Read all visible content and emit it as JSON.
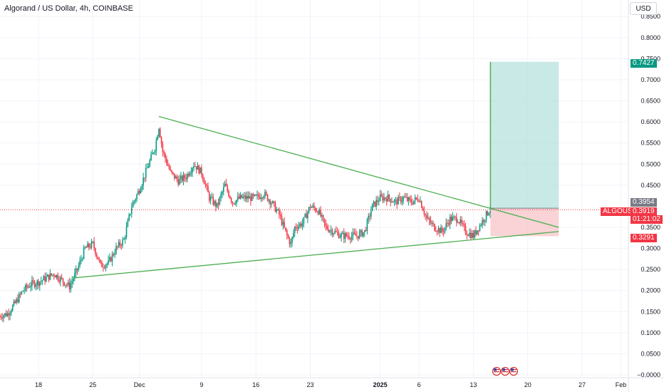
{
  "header": {
    "title": "Algorand / US Dollar, 4h, COINBASE",
    "currency": "USD"
  },
  "price_tags": {
    "target": "0.7427",
    "entry": "0.3954",
    "price": "0.3919",
    "countdown": "01:21:02",
    "stop": "0.3291",
    "symbol": "ALGOUSD"
  },
  "colors": {
    "up": "#089981",
    "down": "#f23645",
    "trendline": "#4caf50",
    "profit_zone": "#b2dfdb",
    "loss_zone": "#f8c8cb",
    "price_line": "#f23645"
  },
  "flags_icon": "us-flag-icon",
  "chart_data": {
    "type": "candlestick",
    "title": "Algorand / US Dollar, 4h, COINBASE",
    "y_axis": {
      "position": "right",
      "min": 0,
      "max": 0.85,
      "ticks": [
        {
          "value": 0.85,
          "label": "0.8500"
        },
        {
          "value": 0.8,
          "label": "0.8000"
        },
        {
          "value": 0.75,
          "label": "0.7500"
        },
        {
          "value": 0.7,
          "label": "0.7000"
        },
        {
          "value": 0.65,
          "label": "0.6500"
        },
        {
          "value": 0.6,
          "label": "0.6000"
        },
        {
          "value": 0.55,
          "label": "0.5500"
        },
        {
          "value": 0.5,
          "label": "0.5000"
        },
        {
          "value": 0.45,
          "label": "0.4500"
        },
        {
          "value": 0.35,
          "label": "0.3500"
        },
        {
          "value": 0.3,
          "label": "0.3000"
        },
        {
          "value": 0.25,
          "label": "0.2500"
        },
        {
          "value": 0.2,
          "label": "0.2000"
        },
        {
          "value": 0.15,
          "label": "0.1500"
        },
        {
          "value": 0.1,
          "label": "0.1000"
        },
        {
          "value": 0.05,
          "label": "0.0500"
        },
        {
          "value": 0,
          "label": "−0.0000"
        }
      ]
    },
    "x_axis": {
      "ticks": [
        {
          "label": "18",
          "day": 0,
          "bold": false
        },
        {
          "label": "25",
          "day": 7,
          "bold": false
        },
        {
          "label": "Dec",
          "day": 13,
          "bold": false
        },
        {
          "label": "9",
          "day": 21,
          "bold": false
        },
        {
          "label": "16",
          "day": 28,
          "bold": false
        },
        {
          "label": "23",
          "day": 35,
          "bold": false
        },
        {
          "label": "2025",
          "day": 44,
          "bold": true
        },
        {
          "label": "6",
          "day": 49,
          "bold": false
        },
        {
          "label": "13",
          "day": 56,
          "bold": false
        },
        {
          "label": "20",
          "day": 63,
          "bold": false
        },
        {
          "label": "27",
          "day": 70,
          "bold": false
        },
        {
          "label": "Feb",
          "day": 75,
          "bold": false
        }
      ]
    },
    "last_price": 0.3919,
    "trendlines": [
      {
        "name": "upper",
        "from": {
          "day": 15.5,
          "price": 0.613
        },
        "to": {
          "day": 67,
          "price": 0.35
        }
      },
      {
        "name": "lower",
        "from": {
          "day": 4.5,
          "price": 0.23
        },
        "to": {
          "day": 67,
          "price": 0.34
        }
      }
    ],
    "position": {
      "type": "long",
      "entry": 0.3954,
      "target": 0.7427,
      "stop": 0.3291,
      "from_day": 58.2,
      "to_day": 67
    },
    "price_path": [
      {
        "day": -5.0,
        "price": 0.14
      },
      {
        "day": -4,
        "price": 0.145
      },
      {
        "day": -3,
        "price": 0.17
      },
      {
        "day": -2,
        "price": 0.2
      },
      {
        "day": -1,
        "price": 0.215
      },
      {
        "day": 0,
        "price": 0.22
      },
      {
        "day": 1,
        "price": 0.23
      },
      {
        "day": 2,
        "price": 0.24
      },
      {
        "day": 3,
        "price": 0.225
      },
      {
        "day": 4,
        "price": 0.21
      },
      {
        "day": 5,
        "price": 0.25
      },
      {
        "day": 6,
        "price": 0.3
      },
      {
        "day": 7,
        "price": 0.31
      },
      {
        "day": 8,
        "price": 0.26
      },
      {
        "day": 9,
        "price": 0.265
      },
      {
        "day": 10,
        "price": 0.3
      },
      {
        "day": 11,
        "price": 0.32
      },
      {
        "day": 12,
        "price": 0.4
      },
      {
        "day": 13,
        "price": 0.44
      },
      {
        "day": 14,
        "price": 0.49
      },
      {
        "day": 15,
        "price": 0.54
      },
      {
        "day": 15.5,
        "price": 0.59
      },
      {
        "day": 16,
        "price": 0.53
      },
      {
        "day": 17,
        "price": 0.48
      },
      {
        "day": 18,
        "price": 0.46
      },
      {
        "day": 19,
        "price": 0.47
      },
      {
        "day": 20,
        "price": 0.5
      },
      {
        "day": 21,
        "price": 0.48
      },
      {
        "day": 22,
        "price": 0.42
      },
      {
        "day": 23,
        "price": 0.4
      },
      {
        "day": 24,
        "price": 0.45
      },
      {
        "day": 25,
        "price": 0.41
      },
      {
        "day": 26,
        "price": 0.42
      },
      {
        "day": 27,
        "price": 0.42
      },
      {
        "day": 28,
        "price": 0.42
      },
      {
        "day": 29,
        "price": 0.43
      },
      {
        "day": 30,
        "price": 0.41
      },
      {
        "day": 31,
        "price": 0.38
      },
      {
        "day": 32,
        "price": 0.33
      },
      {
        "day": 32.5,
        "price": 0.31
      },
      {
        "day": 33,
        "price": 0.35
      },
      {
        "day": 34,
        "price": 0.36
      },
      {
        "day": 35,
        "price": 0.4
      },
      {
        "day": 36,
        "price": 0.39
      },
      {
        "day": 37,
        "price": 0.35
      },
      {
        "day": 38,
        "price": 0.34
      },
      {
        "day": 39,
        "price": 0.33
      },
      {
        "day": 40,
        "price": 0.33
      },
      {
        "day": 41,
        "price": 0.33
      },
      {
        "day": 42,
        "price": 0.34
      },
      {
        "day": 43,
        "price": 0.4
      },
      {
        "day": 44,
        "price": 0.42
      },
      {
        "day": 45,
        "price": 0.42
      },
      {
        "day": 46,
        "price": 0.41
      },
      {
        "day": 47,
        "price": 0.42
      },
      {
        "day": 48,
        "price": 0.41
      },
      {
        "day": 49,
        "price": 0.42
      },
      {
        "day": 50,
        "price": 0.37
      },
      {
        "day": 51,
        "price": 0.35
      },
      {
        "day": 52,
        "price": 0.34
      },
      {
        "day": 53,
        "price": 0.37
      },
      {
        "day": 54,
        "price": 0.37
      },
      {
        "day": 55,
        "price": 0.34
      },
      {
        "day": 56,
        "price": 0.33
      },
      {
        "day": 57,
        "price": 0.36
      },
      {
        "day": 58,
        "price": 0.39
      },
      {
        "day": 58.2,
        "price": 0.3919
      }
    ]
  }
}
